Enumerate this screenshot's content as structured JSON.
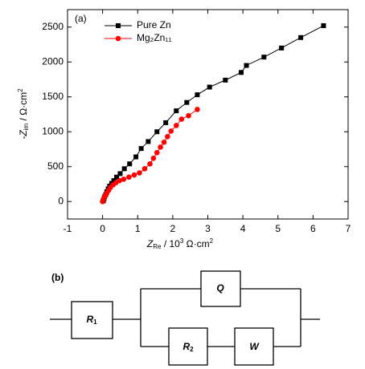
{
  "chart_data": {
    "type": "scatter-line",
    "panel_label": "(a)",
    "x_label": [
      "Z",
      "Re",
      " / 10",
      "3",
      " Ω·cm",
      "2"
    ],
    "y_label": [
      "-Z",
      "im",
      " / Ω·cm",
      "2"
    ],
    "xlim": [
      -1,
      7
    ],
    "xticks": [
      -1,
      0,
      1,
      2,
      3,
      4,
      5,
      6,
      7
    ],
    "ylim": [
      -250,
      2750
    ],
    "yticks": [
      0,
      500,
      1000,
      1500,
      2000,
      2500
    ],
    "legend": "upper left",
    "series": [
      {
        "name": "Pure Zn",
        "color": "#000000",
        "marker": "square",
        "x": [
          0.02,
          0.04,
          0.06,
          0.09,
          0.12,
          0.16,
          0.2,
          0.26,
          0.32,
          0.4,
          0.5,
          0.62,
          0.77,
          0.95,
          1.1,
          1.3,
          1.55,
          1.8,
          2.1,
          2.4,
          2.7,
          3.05,
          3.5,
          3.95,
          4.1,
          4.6,
          5.1,
          5.65,
          6.3
        ],
        "values": [
          10,
          40,
          70,
          100,
          140,
          180,
          220,
          260,
          300,
          350,
          400,
          470,
          540,
          640,
          760,
          860,
          1000,
          1130,
          1300,
          1420,
          1530,
          1640,
          1740,
          1850,
          1950,
          2070,
          2200,
          2350,
          2520
        ]
      },
      {
        "name": "Mg₂Zn₁₁",
        "color": "#ff0000",
        "marker": "circle",
        "x": [
          0,
          0.02,
          0.05,
          0.08,
          0.12,
          0.17,
          0.22,
          0.3,
          0.38,
          0.48,
          0.6,
          0.75,
          0.9,
          1.05,
          1.2,
          1.35,
          1.45,
          1.55,
          1.65,
          1.75,
          1.85,
          1.95,
          2.1,
          2.25,
          2.45,
          2.7
        ],
        "values": [
          0,
          30,
          60,
          90,
          120,
          160,
          200,
          240,
          270,
          300,
          320,
          350,
          380,
          410,
          470,
          540,
          620,
          700,
          780,
          850,
          930,
          1010,
          1090,
          1180,
          1230,
          1320
        ]
      }
    ]
  },
  "diagram": {
    "panel_label": "(b)",
    "components": [
      {
        "label": "R",
        "sub": "1"
      },
      {
        "label": "Q"
      },
      {
        "label": "R",
        "sub": "2"
      },
      {
        "label": "W"
      }
    ]
  }
}
